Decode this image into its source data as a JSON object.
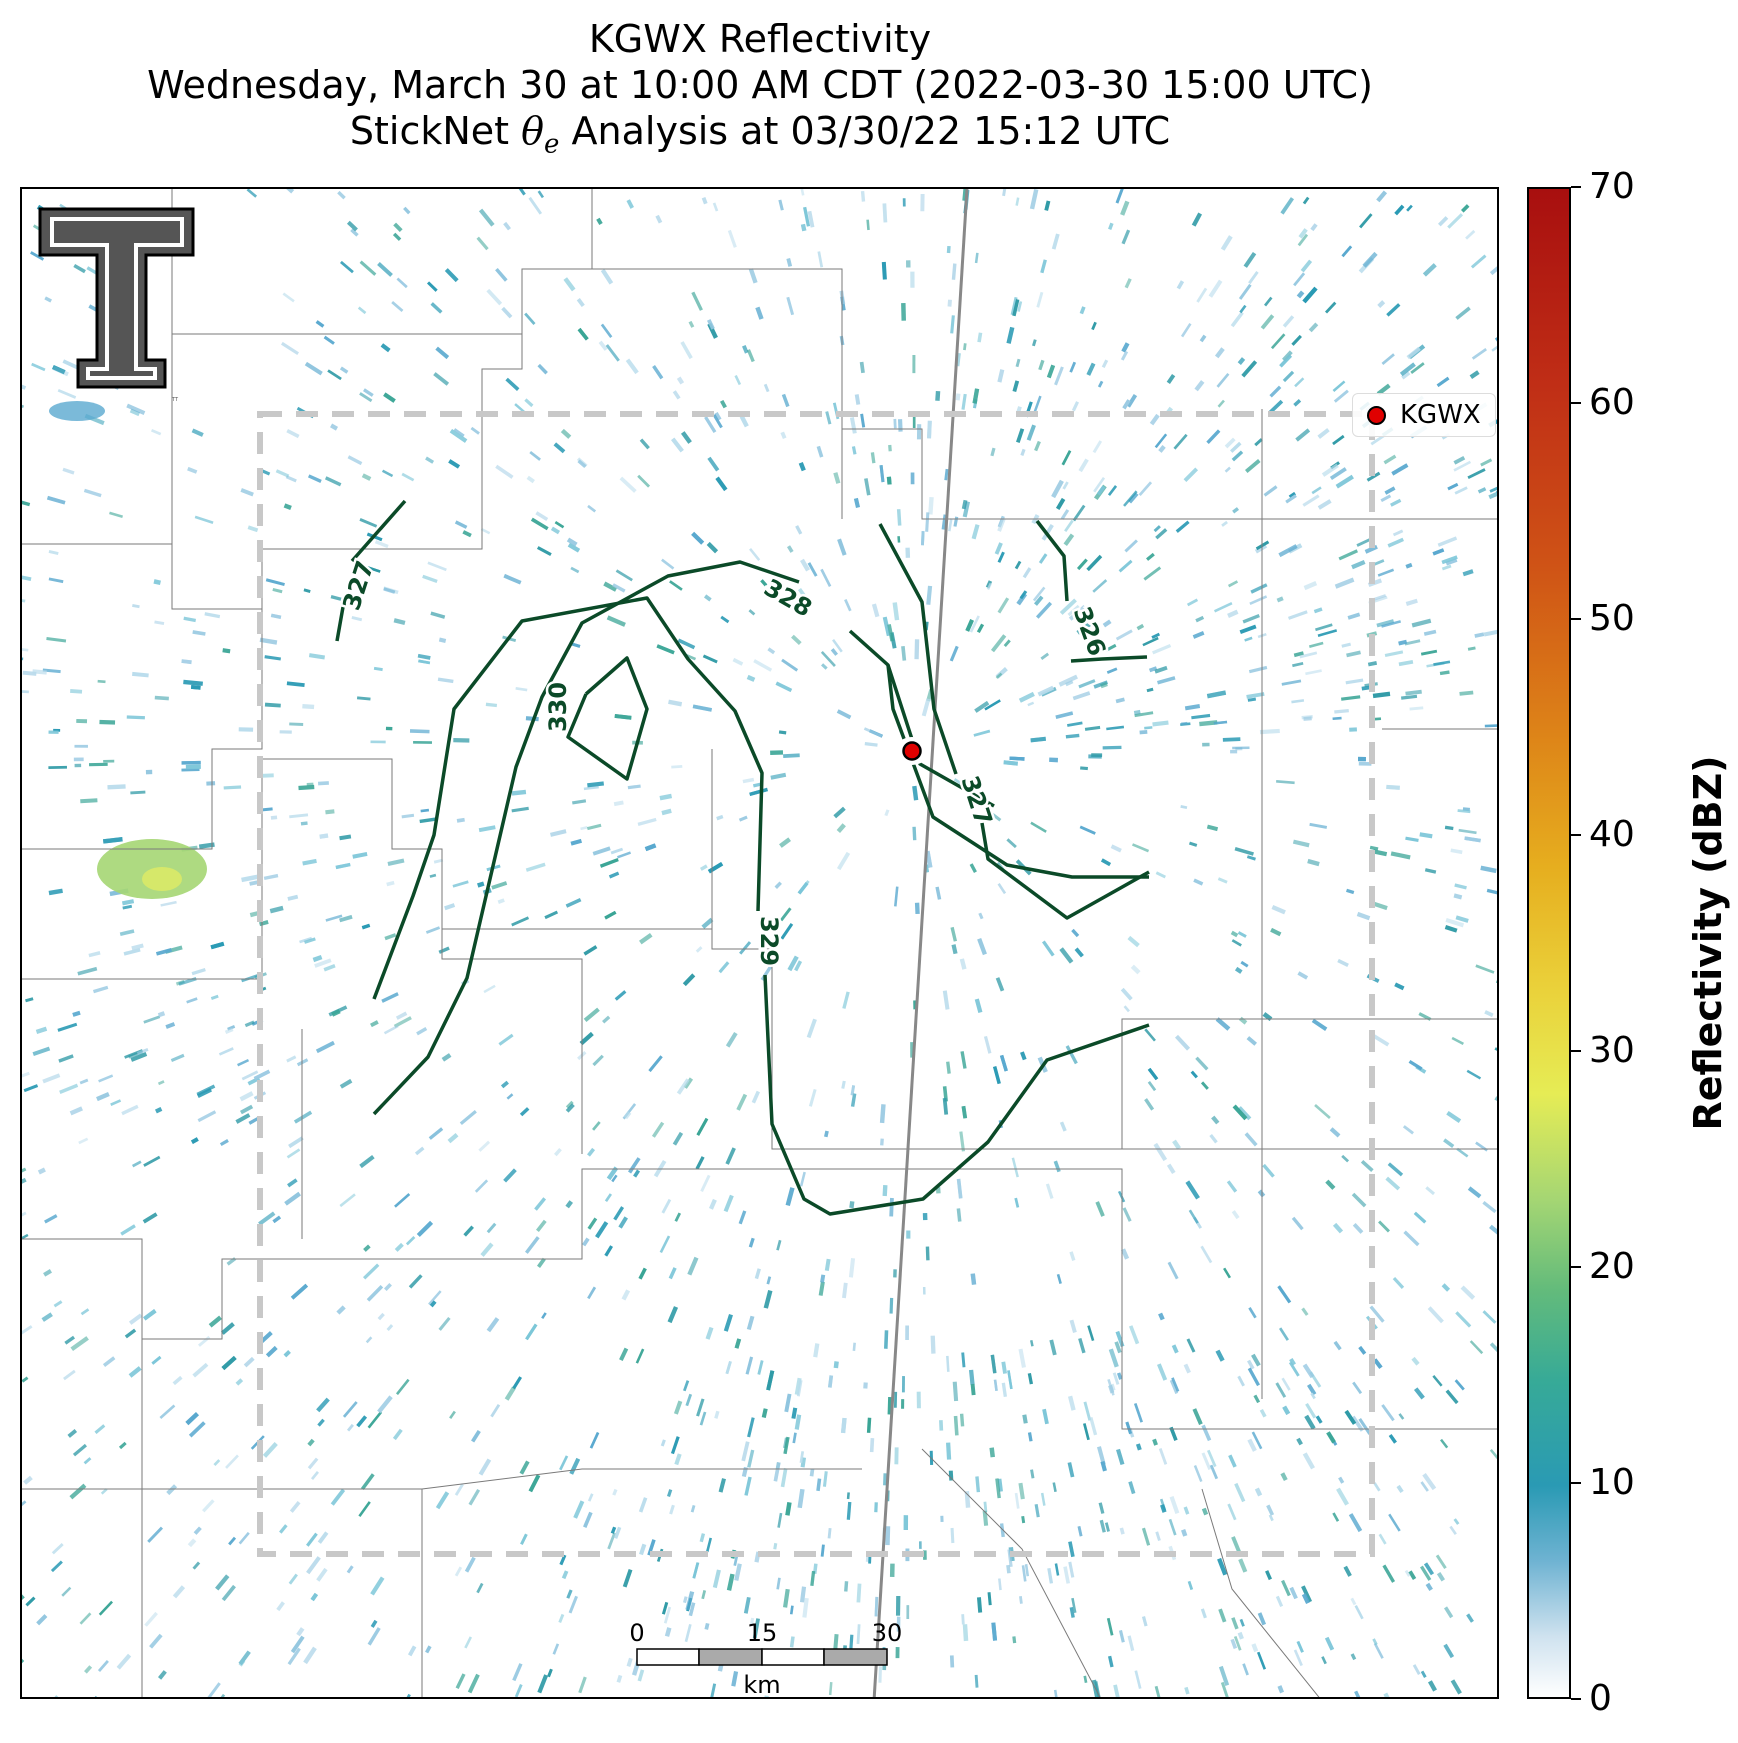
{
  "title": {
    "line1": "KGWX Reflectivity",
    "line2": "Wednesday, March 30 at 10:00 AM CDT (2022-03-30 15:00 UTC)",
    "line3_prefix": "StickNet",
    "line3_symbol": "θ",
    "line3_subscript": "e",
    "line3_suffix": "Analysis at 03/30/22 15:12 UTC"
  },
  "legend": {
    "label": "KGWX",
    "marker_color": "#e00000"
  },
  "colorbar": {
    "label": "Reflectivity (dBZ)",
    "min": 0,
    "max": 70,
    "ticks": [
      "0",
      "10",
      "20",
      "30",
      "40",
      "50",
      "60",
      "70"
    ],
    "colors": [
      "#ffffff",
      "#2a9ab4",
      "#63bb7b",
      "#e6ec55",
      "#e6ae1f",
      "#dd8318",
      "#c02e16",
      "#a80f0f"
    ]
  },
  "contours": {
    "color": "#0b4a28",
    "labels": [
      "327",
      "328",
      "330",
      "329",
      "327",
      "326"
    ]
  },
  "scale_bar": {
    "ticks": [
      "0",
      "15",
      "30"
    ],
    "unit": "km"
  },
  "logo": {
    "text": "TT",
    "colors": [
      "#555555",
      "#ffffff",
      "#000000"
    ]
  }
}
